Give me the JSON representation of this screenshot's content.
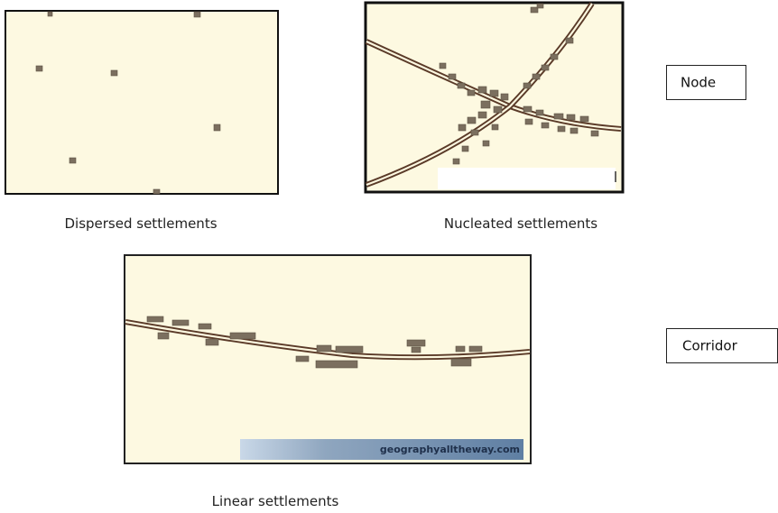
{
  "panels": [
    {
      "caption": "Dispersed settlements"
    },
    {
      "caption": "Nucleated settlements"
    },
    {
      "caption": "Linear settlements",
      "watermark": "geographyalltheway.com"
    }
  ],
  "labels": [
    "Node",
    "Corridor"
  ]
}
